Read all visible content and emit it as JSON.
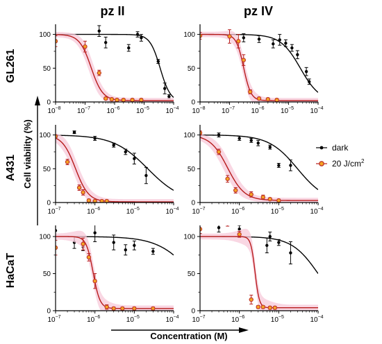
{
  "columns": [
    "pz II",
    "pz IV"
  ],
  "rows": [
    "GL261",
    "A431",
    "HaCaT"
  ],
  "ylabel": "Cell viability (%)",
  "xlabel": "Concentration (M)",
  "legend": {
    "placement": "right",
    "entries": [
      {
        "label": "dark",
        "color": "#000000",
        "marker": "filled-circle"
      },
      {
        "label": "20 J/cm",
        "sup": "2",
        "color": "#b71c1c",
        "marker": "orange-ring"
      }
    ]
  },
  "colors": {
    "dark": "#000000",
    "irradiated_line": "#b71c1c",
    "irradiated_marker_edge": "#c0392b",
    "irradiated_marker_fill": "#f6a623",
    "shade": "#f7c9da"
  },
  "chart_data": [
    {
      "type": "scatter",
      "row": "GL261",
      "column": "pz II",
      "xscale": "log",
      "xlim_exp": [
        -8,
        -4
      ],
      "ylim": [
        0,
        115
      ],
      "yticks": [
        0,
        50,
        100
      ],
      "xtick_exps": [
        -8,
        -7,
        -6,
        -5,
        -4
      ],
      "series": [
        {
          "name": "dark",
          "x": [
            3e-07,
            5e-07,
            3e-06,
            6e-06,
            8e-06,
            3e-05,
            5e-05,
            7e-05
          ],
          "y": [
            105,
            88,
            80,
            100,
            95,
            60,
            20,
            8
          ],
          "err": [
            8,
            8,
            5,
            4,
            5,
            3,
            8,
            3
          ],
          "fit": {
            "top": 100,
            "bottom": 0,
            "ec50": 3.5e-05,
            "hill": 2.5
          }
        },
        {
          "name": "20 J/cm",
          "x": [
            1e-08,
            1e-07,
            3e-07,
            5e-07,
            8e-07,
            1.2e-06,
            2e-06,
            4e-06,
            8e-06
          ],
          "y": [
            90,
            82,
            43,
            5,
            4,
            3,
            3,
            3,
            3
          ],
          "err": [
            8,
            8,
            4,
            2,
            2,
            2,
            2,
            2,
            2
          ],
          "fit": {
            "top": 100,
            "bottom": 2,
            "ec50": 1.6e-07,
            "hill": 2.2
          }
        }
      ]
    },
    {
      "type": "scatter",
      "row": "GL261",
      "column": "pz IV",
      "xscale": "log",
      "xlim_exp": [
        -8,
        -4
      ],
      "ylim": [
        0,
        115
      ],
      "yticks": [
        0,
        50,
        100
      ],
      "xtick_exps": [
        -8,
        -7,
        -6,
        -5,
        -4
      ],
      "series": [
        {
          "name": "dark",
          "x": [
            3e-07,
            1e-06,
            3e-06,
            5e-06,
            8e-06,
            1.3e-05,
            2e-05,
            4e-05,
            5e-05
          ],
          "y": [
            95,
            93,
            86,
            92,
            87,
            80,
            70,
            45,
            30
          ],
          "err": [
            6,
            5,
            6,
            8,
            5,
            5,
            6,
            6,
            4
          ],
          "fit": {
            "top": 100,
            "bottom": 0,
            "ec50": 2.5e-05,
            "hill": 1.3
          }
        },
        {
          "name": "20 J/cm",
          "x": [
            1e-08,
            1e-07,
            2e-07,
            3e-07,
            5e-07,
            1e-06,
            2e-06,
            4e-06
          ],
          "y": [
            98,
            97,
            90,
            62,
            15,
            5,
            4,
            3
          ],
          "err": [
            5,
            10,
            10,
            8,
            3,
            2,
            2,
            2
          ],
          "fit": {
            "top": 100,
            "bottom": 2,
            "ec50": 3e-07,
            "hill": 3.5
          }
        }
      ]
    },
    {
      "type": "scatter",
      "row": "A431",
      "column": "pz II",
      "xscale": "log",
      "xlim_exp": [
        -7,
        -4
      ],
      "ylim": [
        0,
        115
      ],
      "yticks": [
        0,
        50,
        100
      ],
      "xtick_exps": [
        -7,
        -6,
        -5,
        -4
      ],
      "series": [
        {
          "name": "dark",
          "x": [
            3e-07,
            1e-06,
            3e-06,
            6e-06,
            1e-05,
            2e-05
          ],
          "y": [
            104,
            95,
            85,
            75,
            65,
            40
          ],
          "err": [
            2,
            3,
            3,
            4,
            8,
            12
          ],
          "fit": {
            "top": 100,
            "bottom": 0,
            "ec50": 2.2e-05,
            "hill": 1.0
          }
        },
        {
          "name": "20 J/cm",
          "x": [
            1e-07,
            2e-07,
            4e-07,
            5e-07,
            7e-07,
            1e-06,
            1.5e-06,
            2e-06
          ],
          "y": [
            98,
            60,
            22,
            15,
            3,
            2,
            2,
            2
          ],
          "err": [
            2,
            4,
            4,
            4,
            2,
            2,
            2,
            2
          ],
          "fit": {
            "top": 100,
            "bottom": 1,
            "ec50": 3.2e-07,
            "hill": 2.6
          }
        }
      ]
    },
    {
      "type": "scatter",
      "row": "A431",
      "column": "pz IV",
      "xscale": "log",
      "xlim_exp": [
        -7,
        -4
      ],
      "ylim": [
        0,
        115
      ],
      "yticks": [
        0,
        50,
        100
      ],
      "xtick_exps": [
        -7,
        -6,
        -5,
        -4
      ],
      "series": [
        {
          "name": "dark",
          "x": [
            1e-07,
            3e-07,
            1e-06,
            2e-06,
            3e-06,
            6e-06,
            1e-05,
            2e-05
          ],
          "y": [
            100,
            100,
            95,
            92,
            88,
            82,
            55,
            55
          ],
          "err": [
            3,
            3,
            3,
            3,
            4,
            3,
            3,
            8
          ],
          "fit": {
            "top": 100,
            "bottom": 0,
            "ec50": 3e-05,
            "hill": 1.2
          }
        },
        {
          "name": "20 J/cm",
          "x": [
            1e-07,
            3e-07,
            5e-07,
            8e-07,
            2e-06,
            4e-06,
            6e-06,
            1e-05
          ],
          "y": [
            103,
            75,
            35,
            18,
            12,
            8,
            5,
            3
          ],
          "err": [
            3,
            4,
            5,
            4,
            4,
            3,
            2,
            2
          ],
          "fit": {
            "top": 100,
            "bottom": 3,
            "ec50": 5e-07,
            "hill": 2.0
          }
        }
      ]
    },
    {
      "type": "scatter",
      "row": "HaCaT",
      "column": "pz II",
      "xscale": "log",
      "xlim_exp": [
        -7,
        -4
      ],
      "ylim": [
        0,
        115
      ],
      "yticks": [
        0,
        50,
        100
      ],
      "xtick_exps": [
        -7,
        -6,
        -5,
        -4
      ],
      "series": [
        {
          "name": "dark",
          "x": [
            1e-07,
            3e-07,
            5e-07,
            1e-06,
            3e-06,
            6e-06,
            1e-05,
            3e-05
          ],
          "y": [
            108,
            92,
            86,
            105,
            92,
            82,
            88,
            80
          ],
          "err": [
            8,
            8,
            5,
            12,
            10,
            7,
            6,
            4
          ],
          "fit": {
            "top": 100,
            "bottom": 0,
            "ec50": 0.0003,
            "hill": 1.0
          }
        },
        {
          "name": "20 J/cm",
          "x": [
            1e-07,
            5e-07,
            7e-07,
            1e-06,
            2e-06,
            3e-06,
            5e-06,
            1e-05,
            3e-05
          ],
          "y": [
            85,
            90,
            72,
            40,
            5,
            3,
            3,
            3,
            3
          ],
          "err": [
            10,
            8,
            5,
            10,
            3,
            2,
            2,
            2,
            2
          ],
          "fit": {
            "top": 100,
            "bottom": 3,
            "ec50": 9e-07,
            "hill": 5.0
          }
        }
      ]
    },
    {
      "type": "scatter",
      "row": "HaCaT",
      "column": "pz IV",
      "xscale": "log",
      "xlim_exp": [
        -7,
        -4
      ],
      "ylim": [
        0,
        115
      ],
      "yticks": [
        0,
        50,
        100
      ],
      "xtick_exps": [
        -7,
        -6,
        -5,
        -4
      ],
      "series": [
        {
          "name": "dark",
          "x": [
            1e-07,
            3e-07,
            1e-06,
            5e-06,
            6e-06,
            1e-05,
            2e-05
          ],
          "y": [
            110,
            112,
            110,
            88,
            100,
            92,
            78
          ],
          "err": [
            6,
            6,
            5,
            10,
            6,
            4,
            15
          ],
          "fit": {
            "top": 100,
            "bottom": 0,
            "ec50": 0.0001,
            "hill": 1.3
          }
        },
        {
          "name": "20 J/cm",
          "x": [
            1e-07,
            5e-07,
            1e-06,
            2e-06,
            3e-06,
            4e-06,
            6e-06,
            8e-06
          ],
          "y": [
            110,
            118,
            103,
            15,
            5,
            5,
            4,
            4
          ],
          "err": [
            6,
            4,
            4,
            6,
            2,
            2,
            2,
            2
          ],
          "fit": {
            "top": 100,
            "bottom": 4,
            "ec50": 2.5e-06,
            "hill": 8.0
          }
        }
      ]
    }
  ]
}
